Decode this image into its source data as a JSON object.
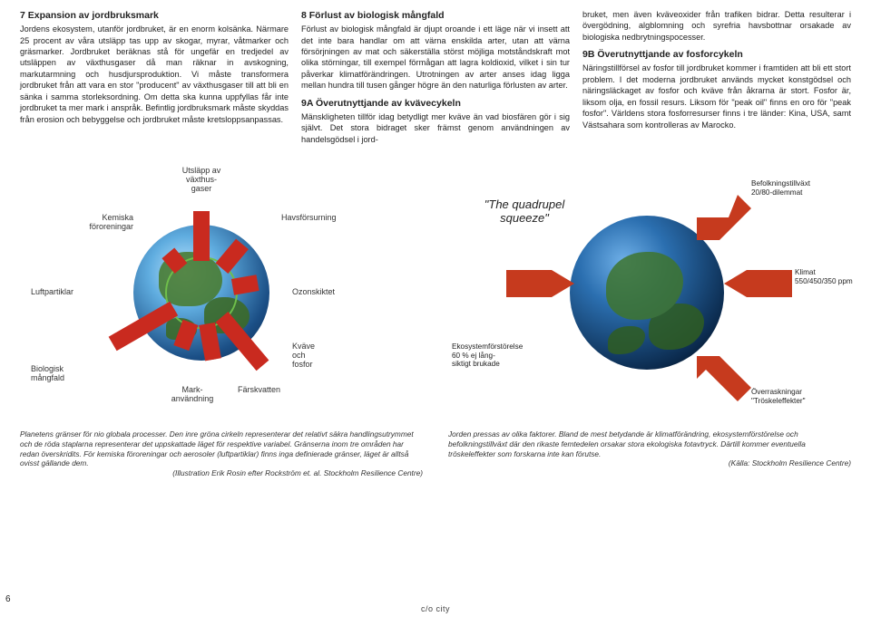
{
  "columns": {
    "c1": {
      "h7": "7 Expansion av jordbruksmark",
      "p7": "Jordens ekosystem, utanför jordbruket, är en enorm kolsänka. Närmare 25 procent av våra utsläpp tas upp av skogar, myrar, våtmarker och gräsmarker. Jordbruket beräknas stå för ungefär en tredjedel av utsläppen av växthusgaser då man räknar in avskogning, markutarmning och husdjursproduktion. Vi måste transformera jordbruket från att vara en stor \"producent\" av växthusgaser till att bli en sänka i samma storleksordning. Om detta ska kunna uppfyllas får inte jordbruket ta mer mark i anspråk. Befintlig jordbruksmark måste skyddas från erosion och bebyggelse och jordbruket måste kretsloppsanpassas."
    },
    "c2": {
      "h8": "8 Förlust av biologisk mångfald",
      "p8": "Förlust av biologisk mångfald är djupt oroande i ett läge när vi insett att det inte bara handlar om att värna enskilda arter, utan att värna försörjningen av mat och säkerställa störst möjliga motståndskraft mot olika störningar, till exempel förmågan att lagra koldioxid, vilket i sin tur påverkar klimatförändringen. Utrotningen av arter anses idag ligga mellan hundra till tusen gånger högre än den naturliga förlusten av arter.",
      "h9a": "9A Överutnyttjande av kvävecykeln",
      "p9a": "Mänskligheten tillför idag betydligt mer kväve än vad biosfären gör i sig självt. Det stora bidraget sker främst genom användningen av handelsgödsel i jord-"
    },
    "c3": {
      "p9a2": "bruket, men även kväveoxider från trafiken bidrar. Detta resulterar i övergödning, algblomning och syrefria havsbottnar orsakade av biologiska nedbrytningspocesser.",
      "h9b": "9B Överutnyttjande av fosforcykeln",
      "p9b": "Näringstillförsel av fosfor till jordbruket kommer i framtiden att bli ett stort problem. I det moderna jordbruket används mycket konstgödsel och näringsläckaget av fosfor och kväve från åkrarna är stort. Fosfor är, liksom olja, en fossil resurs. Liksom för \"peak oil\" finns en oro för \"peak fosfor\". Världens stora fosforresurser finns i tre länder: Kina, USA, samt Västsahara som kontrolleras av Marocko."
    }
  },
  "diagram1": {
    "labels": {
      "kemiska": "Kemiska\nföroreningar",
      "utslapp": "Utsläpp av\nväxthus-\ngaser",
      "havs": "Havsförsurning",
      "luft": "Luftpartiklar",
      "ozon": "Ozonskiktet",
      "bio": "Biologisk\nmångfald",
      "mark": "Mark-\nanvändning",
      "farsk": "Färskvatten",
      "kvave": "Kväve\noch\nfosfor"
    },
    "bars": [
      {
        "angle": 0,
        "len": 55,
        "w": 18
      },
      {
        "angle": 40,
        "len": 35,
        "w": 18
      },
      {
        "angle": 80,
        "len": 28,
        "w": 18
      },
      {
        "angle": 140,
        "len": 70,
        "w": 18
      },
      {
        "angle": 170,
        "len": 40,
        "w": 18
      },
      {
        "angle": 200,
        "len": 30,
        "w": 18
      },
      {
        "angle": 240,
        "len": 78,
        "w": 18
      },
      {
        "angle": 320,
        "len": 22,
        "w": 18
      }
    ],
    "colors": {
      "bar": "#c92a1f",
      "circle": "#6fbf4b"
    }
  },
  "diagram2": {
    "title": "\"The quadrupel squeeze\"",
    "labels": {
      "befolk": "Befolkningstillväxt\n20/80-dilemmat",
      "klimat": "Klimat\n550/450/350 ppm",
      "eko": "Ekosystemförstörelse\n60 % ej lång-\nsiktigt brukade",
      "over": "Överraskningar\n\"Tröskeleffekter\""
    },
    "arrow_color": "#c63a1e"
  },
  "captions": {
    "left": "Planetens gränser för nio globala processer. Den inre gröna cirkeln representerar det relativt säkra handlingsutrymmet och de röda staplarna representerar det uppskattade läget för respektive variabel. Gränserna inom tre områden har redan överskridits. För kemiska föroreningar och aerosoler (luftpartiklar) finns inga definierade gränser, läget är alltså ovisst gällande dem.",
    "left_src": "(Illustration Erik Rosin efter Rockström et. al. Stockholm Resilience Centre)",
    "right": "Jorden pressas av olika faktorer. Bland de mest betydande är klimatförändring, ekosystemförstörelse och befolkningstillväxt där den rikaste femtedelen orsakar stora ekologiska fotavtryck. Därtill kommer eventuella tröskeleffekter som forskarna inte kan förutse.",
    "right_src": "(Källa: Stockholm Resilience Centre)"
  },
  "page_number": "6",
  "footer": "c/o city"
}
